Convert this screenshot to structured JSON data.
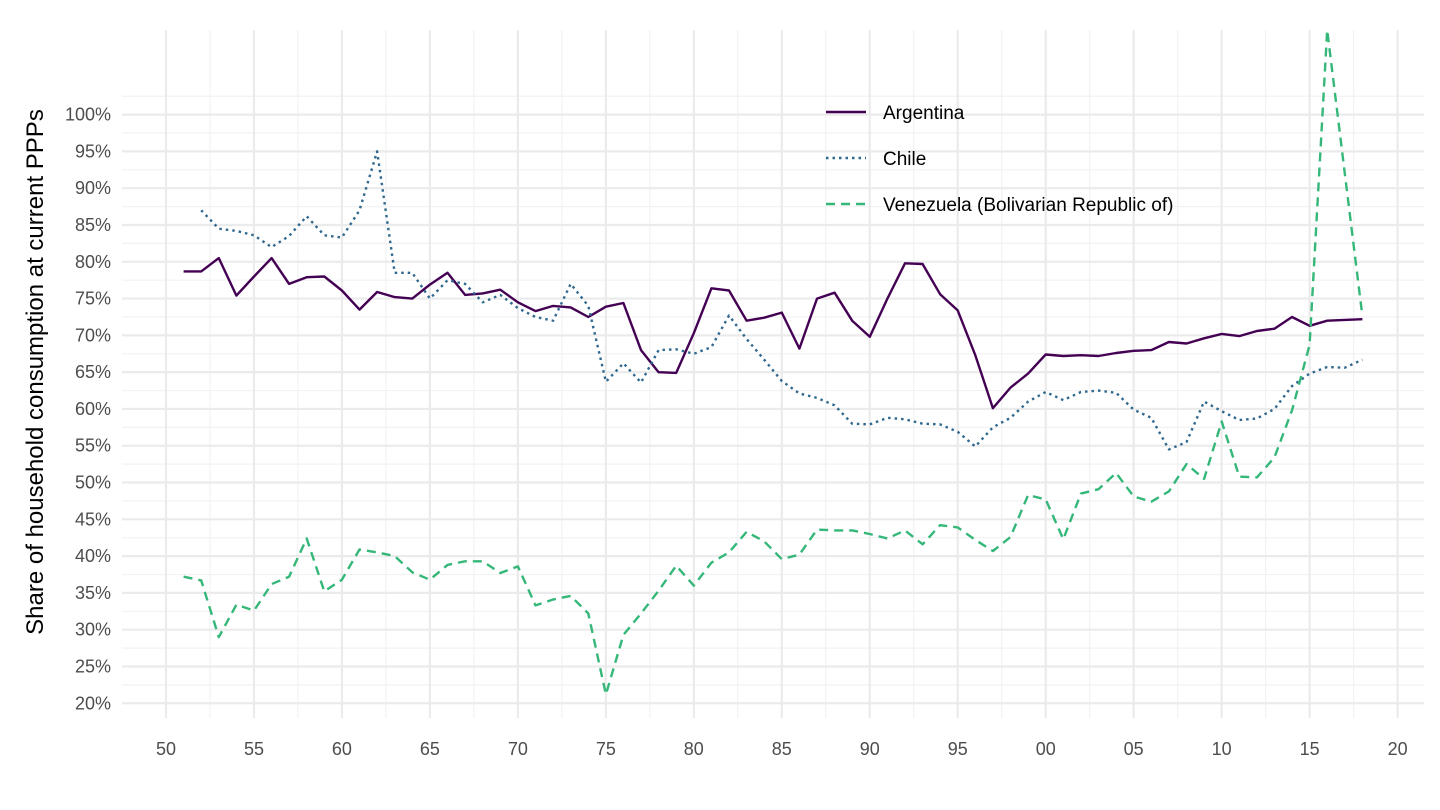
{
  "chart_data": {
    "type": "line",
    "title": "",
    "xlabel": "",
    "ylabel": "Share of household consumption at current PPPs",
    "x_tick_labels": [
      "50",
      "55",
      "60",
      "65",
      "70",
      "75",
      "80",
      "85",
      "90",
      "95",
      "00",
      "05",
      "10",
      "15",
      "20"
    ],
    "x_ticks": [
      1950,
      1955,
      1960,
      1965,
      1970,
      1975,
      1980,
      1985,
      1990,
      1995,
      2000,
      2005,
      2010,
      2015,
      2020
    ],
    "y_tick_labels": [
      "20%",
      "25%",
      "30%",
      "35%",
      "40%",
      "45%",
      "50%",
      "55%",
      "60%",
      "65%",
      "70%",
      "75%",
      "80%",
      "85%",
      "90%",
      "95%",
      "100%"
    ],
    "y_ticks": [
      0.2,
      0.25,
      0.3,
      0.35,
      0.4,
      0.45,
      0.5,
      0.55,
      0.6,
      0.65,
      0.7,
      0.75,
      0.8,
      0.85,
      0.9,
      0.95,
      1.0
    ],
    "xlim": [
      1947.5,
      2021.5
    ],
    "ylim": [
      0.18,
      1.115
    ],
    "grid": true,
    "legend_position": "top-right",
    "series": [
      {
        "name": "Argentina",
        "color": "#440154",
        "dash": "solid",
        "x": [
          1951,
          1952,
          1953,
          1954,
          1955,
          1956,
          1957,
          1958,
          1959,
          1960,
          1961,
          1962,
          1963,
          1964,
          1965,
          1966,
          1967,
          1968,
          1969,
          1970,
          1971,
          1972,
          1973,
          1974,
          1975,
          1976,
          1977,
          1978,
          1979,
          1980,
          1981,
          1982,
          1983,
          1984,
          1985,
          1986,
          1987,
          1988,
          1989,
          1990,
          1991,
          1992,
          1993,
          1994,
          1995,
          1996,
          1997,
          1998,
          1999,
          2000,
          2001,
          2002,
          2003,
          2004,
          2005,
          2006,
          2007,
          2008,
          2009,
          2010,
          2011,
          2012,
          2013,
          2014,
          2015,
          2016,
          2017,
          2018
        ],
        "values": [
          0.787,
          0.787,
          0.805,
          0.754,
          0.78,
          0.805,
          0.77,
          0.779,
          0.78,
          0.761,
          0.735,
          0.759,
          0.752,
          0.75,
          0.769,
          0.785,
          0.755,
          0.757,
          0.762,
          0.745,
          0.733,
          0.74,
          0.738,
          0.725,
          0.739,
          0.744,
          0.68,
          0.65,
          0.649,
          0.703,
          0.764,
          0.761,
          0.72,
          0.724,
          0.731,
          0.682,
          0.75,
          0.758,
          0.72,
          0.698,
          0.75,
          0.798,
          0.797,
          0.756,
          0.734,
          0.673,
          0.601,
          0.629,
          0.648,
          0.674,
          0.672,
          0.673,
          0.672,
          0.676,
          0.679,
          0.68,
          0.691,
          0.689,
          0.696,
          0.702,
          0.699,
          0.706,
          0.709,
          0.725,
          0.713,
          0.72,
          0.721,
          0.722
        ]
      },
      {
        "name": "Chile",
        "color": "#31688e",
        "dash": "dotted",
        "x": [
          1952,
          1953,
          1954,
          1955,
          1956,
          1957,
          1958,
          1959,
          1960,
          1961,
          1962,
          1963,
          1964,
          1965,
          1966,
          1967,
          1968,
          1969,
          1970,
          1971,
          1972,
          1973,
          1974,
          1975,
          1976,
          1977,
          1978,
          1979,
          1980,
          1981,
          1982,
          1983,
          1984,
          1985,
          1986,
          1987,
          1988,
          1989,
          1990,
          1991,
          1992,
          1993,
          1994,
          1995,
          1996,
          1997,
          1998,
          1999,
          2000,
          2001,
          2002,
          2003,
          2004,
          2005,
          2006,
          2007,
          2008,
          2009,
          2010,
          2011,
          2012,
          2013,
          2014,
          2015,
          2016,
          2017,
          2018
        ],
        "values": [
          0.87,
          0.845,
          0.842,
          0.836,
          0.82,
          0.835,
          0.862,
          0.836,
          0.833,
          0.87,
          0.95,
          0.785,
          0.785,
          0.75,
          0.775,
          0.77,
          0.745,
          0.755,
          0.737,
          0.725,
          0.72,
          0.77,
          0.74,
          0.637,
          0.662,
          0.636,
          0.68,
          0.681,
          0.675,
          0.684,
          0.727,
          0.695,
          0.667,
          0.638,
          0.621,
          0.615,
          0.605,
          0.58,
          0.579,
          0.588,
          0.586,
          0.58,
          0.579,
          0.569,
          0.549,
          0.575,
          0.588,
          0.61,
          0.623,
          0.612,
          0.623,
          0.625,
          0.622,
          0.599,
          0.588,
          0.545,
          0.555,
          0.61,
          0.597,
          0.585,
          0.587,
          0.6,
          0.631,
          0.648,
          0.657,
          0.656,
          0.667
        ]
      },
      {
        "name": "Venezuela (Bolivarian Republic of)",
        "color": "#35b779",
        "dash": "dashed",
        "x": [
          1951,
          1952,
          1953,
          1954,
          1955,
          1956,
          1957,
          1958,
          1959,
          1960,
          1961,
          1962,
          1963,
          1964,
          1965,
          1966,
          1967,
          1968,
          1969,
          1970,
          1971,
          1972,
          1973,
          1974,
          1975,
          1976,
          1977,
          1978,
          1979,
          1980,
          1981,
          1982,
          1983,
          1984,
          1985,
          1986,
          1987,
          1988,
          1989,
          1990,
          1991,
          1992,
          1993,
          1994,
          1995,
          1996,
          1997,
          1998,
          1999,
          2000,
          2001,
          2002,
          2003,
          2004,
          2005,
          2006,
          2007,
          2008,
          2009,
          2010,
          2011,
          2012,
          2013,
          2014,
          2015,
          2016,
          2017,
          2018
        ],
        "values": [
          0.372,
          0.367,
          0.29,
          0.334,
          0.326,
          0.362,
          0.372,
          0.424,
          0.352,
          0.368,
          0.409,
          0.405,
          0.4,
          0.378,
          0.368,
          0.388,
          0.393,
          0.393,
          0.377,
          0.386,
          0.333,
          0.341,
          0.346,
          0.322,
          0.212,
          0.293,
          0.322,
          0.353,
          0.387,
          0.36,
          0.391,
          0.405,
          0.433,
          0.42,
          0.396,
          0.402,
          0.436,
          0.435,
          0.435,
          0.43,
          0.424,
          0.435,
          0.416,
          0.442,
          0.439,
          0.422,
          0.407,
          0.426,
          0.483,
          0.477,
          0.423,
          0.485,
          0.491,
          0.513,
          0.481,
          0.474,
          0.488,
          0.525,
          0.505,
          0.583,
          0.508,
          0.507,
          0.534,
          0.598,
          0.687,
          1.115,
          0.92,
          0.726
        ]
      }
    ]
  }
}
